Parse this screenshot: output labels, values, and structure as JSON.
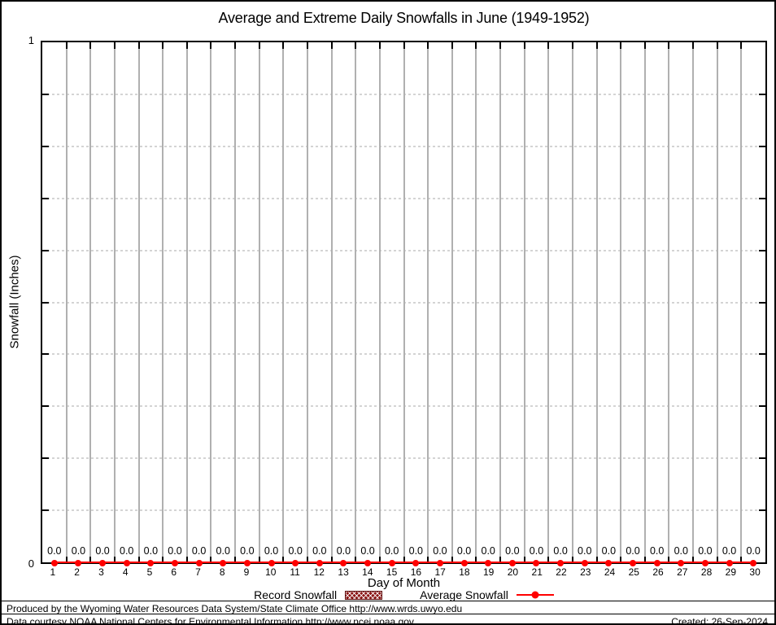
{
  "chart_data": {
    "type": "line",
    "title": "Average and Extreme Daily Snowfalls in June (1949-1952)",
    "xlabel": "Day of Month",
    "ylabel": "Snowfall (Inches)",
    "ylim": [
      0,
      1
    ],
    "ytick_labels": [
      "0",
      "1"
    ],
    "y_minor_step": 0.1,
    "grid": "on",
    "legend_position": "below",
    "x": [
      1,
      2,
      3,
      4,
      5,
      6,
      7,
      8,
      9,
      10,
      11,
      12,
      13,
      14,
      15,
      16,
      17,
      18,
      19,
      20,
      21,
      22,
      23,
      24,
      25,
      26,
      27,
      28,
      29,
      30
    ],
    "series": [
      {
        "name": "Record Snowfall",
        "style": "hatched-box",
        "color": "#8b1616",
        "values": [
          0,
          0,
          0,
          0,
          0,
          0,
          0,
          0,
          0,
          0,
          0,
          0,
          0,
          0,
          0,
          0,
          0,
          0,
          0,
          0,
          0,
          0,
          0,
          0,
          0,
          0,
          0,
          0,
          0,
          0
        ]
      },
      {
        "name": "Average Snowfall",
        "style": "line-point",
        "color": "#ff0000",
        "values": [
          0,
          0,
          0,
          0,
          0,
          0,
          0,
          0,
          0,
          0,
          0,
          0,
          0,
          0,
          0,
          0,
          0,
          0,
          0,
          0,
          0,
          0,
          0,
          0,
          0,
          0,
          0,
          0,
          0,
          0
        ]
      }
    ],
    "value_labels": [
      "0.0",
      "0.0",
      "0.0",
      "0.0",
      "0.0",
      "0.0",
      "0.0",
      "0.0",
      "0.0",
      "0.0",
      "0.0",
      "0.0",
      "0.0",
      "0.0",
      "0.0",
      "0.0",
      "0.0",
      "0.0",
      "0.0",
      "0.0",
      "0.0",
      "0.0",
      "0.0",
      "0.0",
      "0.0",
      "0.0",
      "0.0",
      "0.0",
      "0.0",
      "0.0"
    ]
  },
  "colors": {
    "average_line": "#ff0000",
    "record_fill": "#8b1616",
    "grid_vertical": "#b0b0b0",
    "grid_horizontal": "#a9a9a9",
    "axis": "#000000"
  },
  "footer": {
    "produced_by": "Produced by the Wyoming Water Resources Data System/State Climate Office http://www.wrds.uwyo.edu",
    "data_courtesy": "Data courtesy NOAA National Centers for Environmental Information http://www.ncei.noaa.gov",
    "created": "Created: 26-Sep-2024"
  }
}
